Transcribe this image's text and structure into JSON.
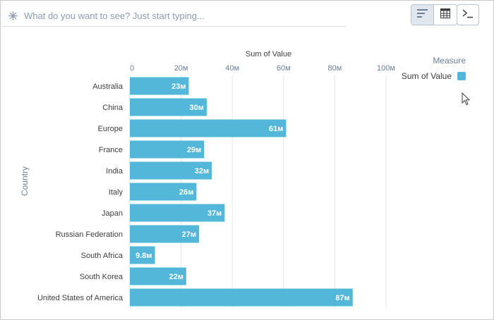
{
  "search": {
    "placeholder": "What do you want to see? Just start typing..."
  },
  "toolbar": {
    "buttons": [
      {
        "icon": "bar-chart-icon",
        "active": true
      },
      {
        "icon": "table-icon",
        "active": false
      }
    ],
    "command_icon": "terminal-icon"
  },
  "legend": {
    "title": "Measure",
    "items": [
      {
        "label": "Sum of Value",
        "color": "#52b7d8"
      }
    ]
  },
  "chart_data": {
    "type": "bar",
    "orientation": "horizontal",
    "xlabel": "Sum of Value",
    "ylabel": "Country",
    "xlim": [
      0,
      100
    ],
    "x_ticks": [
      "0",
      "20м",
      "40м",
      "60м",
      "80м",
      "100м"
    ],
    "grid": true,
    "bar_color": "#52b7d8",
    "categories": [
      "Australia",
      "China",
      "Europe",
      "France",
      "India",
      "Italy",
      "Japan",
      "Russian Federation",
      "South Africa",
      "South Korea",
      "United States of America"
    ],
    "values": [
      23,
      30,
      61,
      29,
      32,
      26,
      37,
      27,
      9.8,
      22,
      87
    ],
    "value_labels": [
      "23м",
      "30м",
      "61м",
      "29м",
      "32м",
      "26м",
      "37м",
      "27м",
      "9.8м",
      "22м",
      "87м"
    ]
  }
}
